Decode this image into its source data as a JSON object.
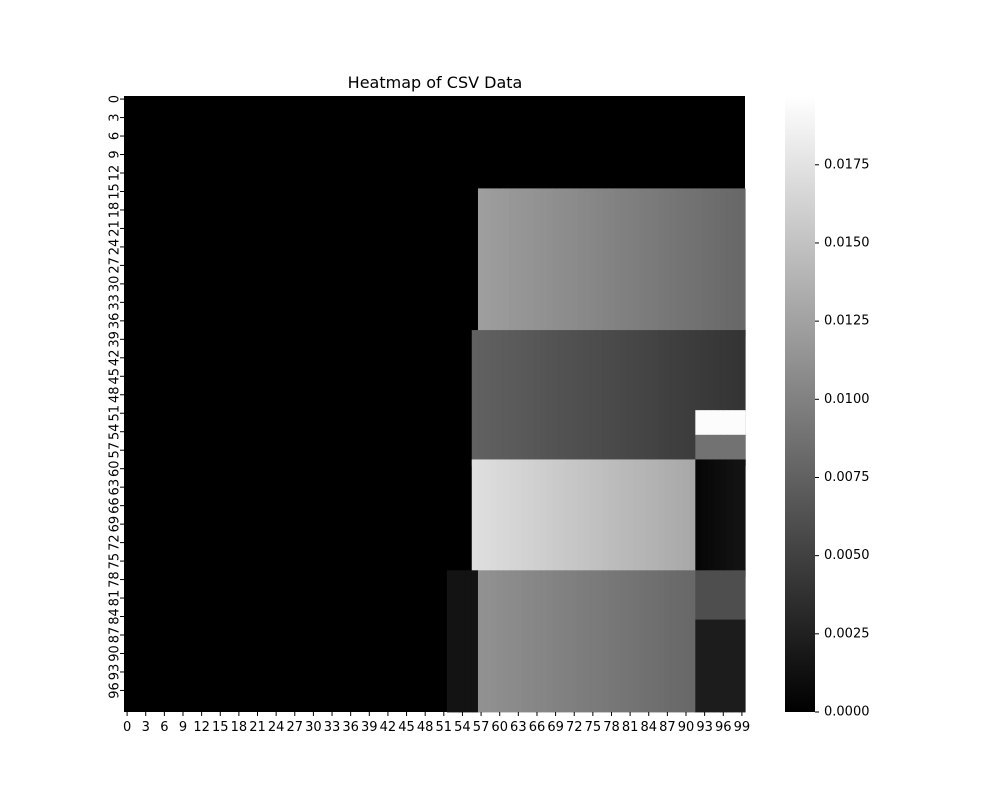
{
  "chart_data": {
    "type": "heatmap",
    "title": "Heatmap of CSV Data",
    "xlabel": "",
    "ylabel": "",
    "n_rows": 100,
    "n_cols": 100,
    "x_tick_step": 3,
    "y_tick_step": 3,
    "x_tick_labels": [
      "0",
      "3",
      "6",
      "9",
      "12",
      "15",
      "18",
      "21",
      "24",
      "27",
      "30",
      "33",
      "36",
      "39",
      "42",
      "45",
      "48",
      "51",
      "54",
      "57",
      "60",
      "63",
      "66",
      "69",
      "72",
      "75",
      "78",
      "81",
      "84",
      "87",
      "90",
      "93",
      "96",
      "99"
    ],
    "y_tick_labels": [
      "0",
      "3",
      "6",
      "9",
      "12",
      "15",
      "18",
      "21",
      "24",
      "27",
      "30",
      "33",
      "36",
      "39",
      "42",
      "45",
      "48",
      "51",
      "54",
      "57",
      "60",
      "63",
      "66",
      "69",
      "72",
      "75",
      "78",
      "81",
      "84",
      "87",
      "90",
      "93",
      "96"
    ],
    "colormap": "gray",
    "colors": {
      "low": "#000000",
      "high": "#ffffff"
    },
    "colorbar": {
      "vmin": 0.0,
      "vmax": 0.0197,
      "ticks": [
        0.0,
        0.0025,
        0.005,
        0.0075,
        0.01,
        0.0125,
        0.015,
        0.0175
      ],
      "tick_labels": [
        "0.0000",
        "0.0025",
        "0.0050",
        "0.0075",
        "0.0100",
        "0.0125",
        "0.0150",
        "0.0175"
      ]
    },
    "background_value": 0.0,
    "regions": [
      {
        "rows": [
          15,
          38
        ],
        "cols": [
          57,
          99
        ],
        "value_left": 0.0122,
        "value_right": 0.008
      },
      {
        "rows": [
          38,
          59
        ],
        "cols": [
          56,
          99
        ],
        "value_left": 0.0075,
        "value_right": 0.004
      },
      {
        "rows": [
          51,
          54
        ],
        "cols": [
          92,
          99
        ],
        "value_left": 0.0195,
        "value_right": 0.0195
      },
      {
        "rows": [
          55,
          59
        ],
        "cols": [
          92,
          99
        ],
        "value_left": 0.0088,
        "value_right": 0.0088
      },
      {
        "rows": [
          59,
          77
        ],
        "cols": [
          56,
          91
        ],
        "value_left": 0.0172,
        "value_right": 0.013
      },
      {
        "rows": [
          59,
          77
        ],
        "cols": [
          92,
          99
        ],
        "value_left": 0.0005,
        "value_right": 0.0015
      },
      {
        "rows": [
          77,
          99
        ],
        "cols": [
          52,
          56
        ],
        "value_left": 0.0015,
        "value_right": 0.0015
      },
      {
        "rows": [
          77,
          99
        ],
        "cols": [
          57,
          91
        ],
        "value_left": 0.0112,
        "value_right": 0.008
      },
      {
        "rows": [
          77,
          84
        ],
        "cols": [
          92,
          99
        ],
        "value_left": 0.006,
        "value_right": 0.006
      },
      {
        "rows": [
          85,
          99
        ],
        "cols": [
          92,
          99
        ],
        "value_left": 0.0022,
        "value_right": 0.0022
      }
    ]
  }
}
